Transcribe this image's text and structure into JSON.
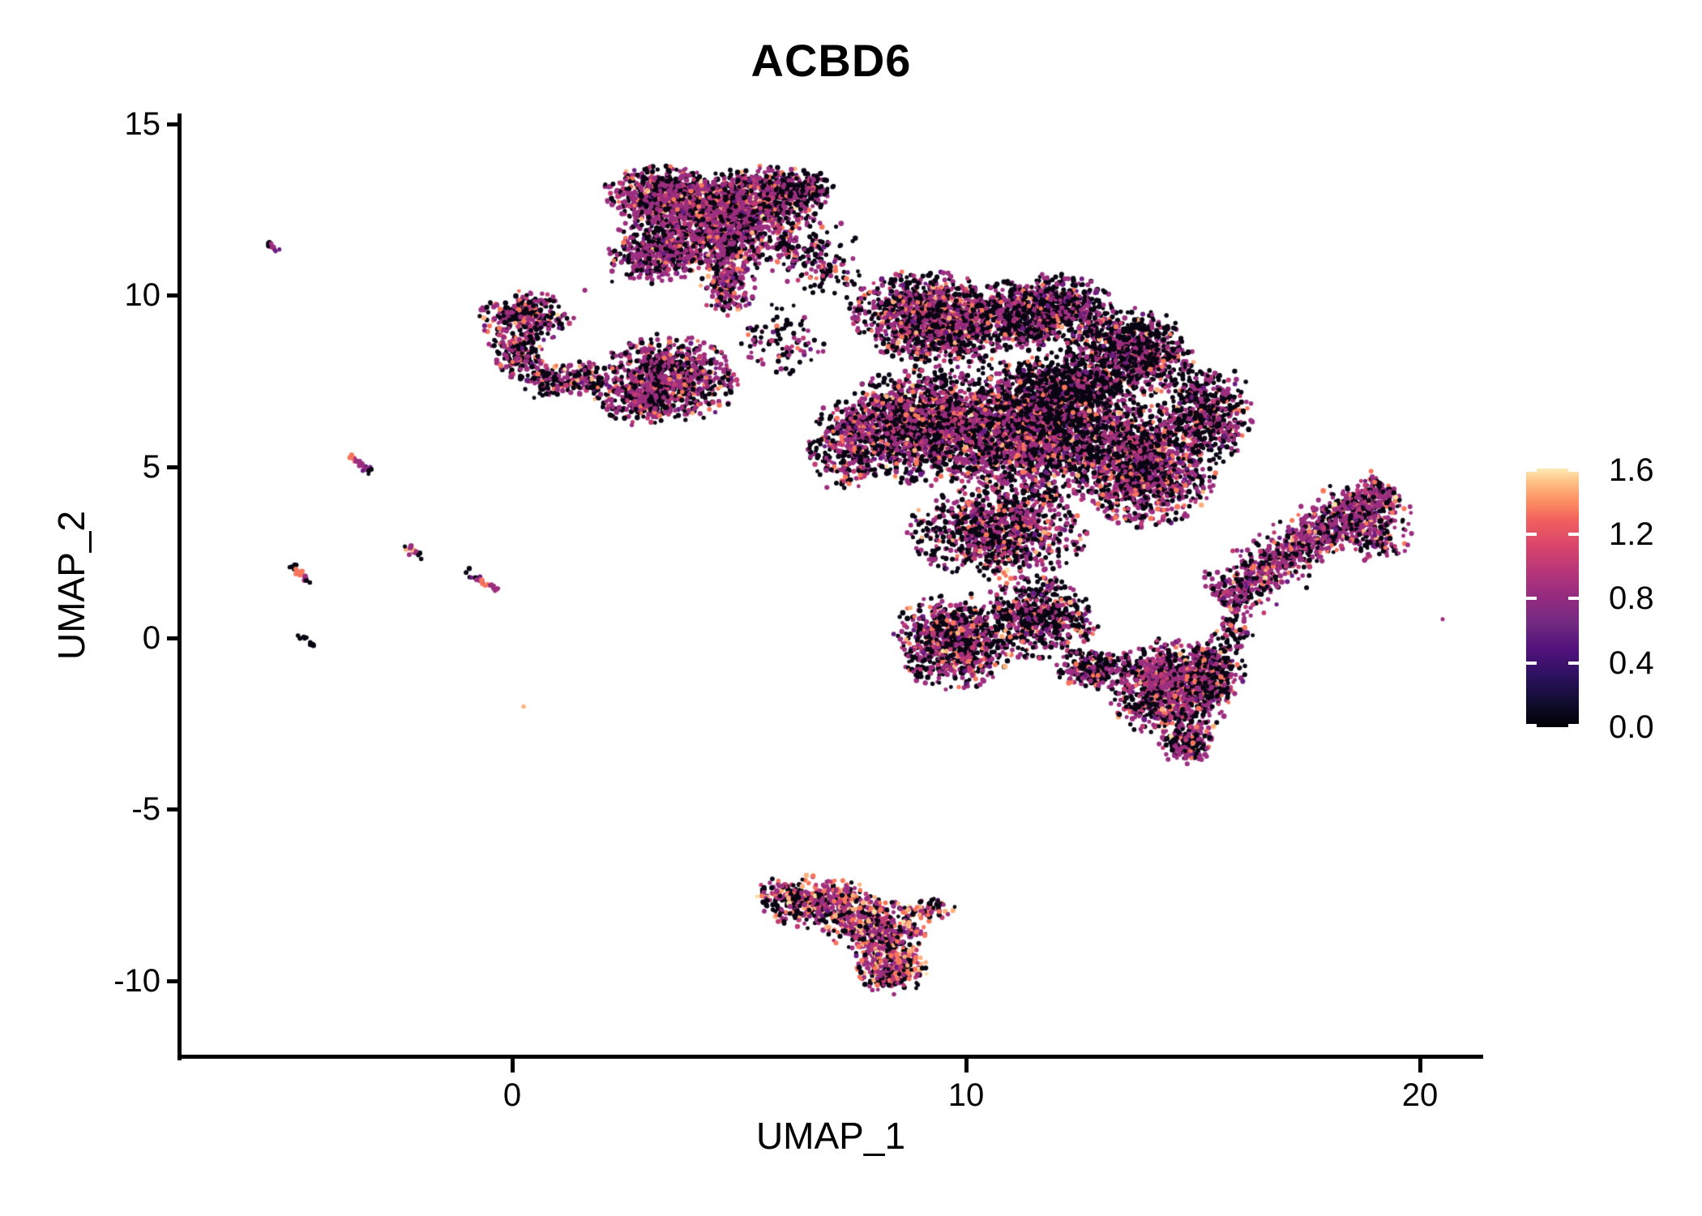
{
  "title": "ACBD6",
  "axes": {
    "x": {
      "label": "UMAP_1",
      "ticks": [
        {
          "value": 0,
          "label": "0"
        },
        {
          "value": 10,
          "label": "10"
        },
        {
          "value": 20,
          "label": "20"
        }
      ],
      "range": [
        -7.3,
        21.4
      ]
    },
    "y": {
      "label": "UMAP_2",
      "ticks": [
        {
          "value": 15,
          "label": "15"
        },
        {
          "value": 10,
          "label": "10"
        },
        {
          "value": 5,
          "label": "5"
        },
        {
          "value": 0,
          "label": "0"
        },
        {
          "value": -5,
          "label": "-5"
        },
        {
          "value": -10,
          "label": "-10"
        }
      ],
      "range": [
        -12.2,
        15.3
      ]
    }
  },
  "colorbar": {
    "max": 1.61,
    "ticks": [
      {
        "value": 1.6,
        "label": "1.6"
      },
      {
        "value": 1.2,
        "label": "1.2"
      },
      {
        "value": 0.8,
        "label": "0.8"
      },
      {
        "value": 0.4,
        "label": "0.4"
      },
      {
        "value": 0.0,
        "label": "0.0"
      }
    ],
    "tick_color": "#ffffff",
    "gradient": [
      "#000004 0%",
      "#120d31 10%",
      "#2d1160 20%",
      "#51127c 30%",
      "#722a81 40%",
      "#932b80 50%",
      "#b63679 60%",
      "#d8456c 70%",
      "#f1605d 80%",
      "#fb8560 86%",
      "#fe9f6d 90%",
      "#fec98d 96%",
      "#fdeab5 100%"
    ]
  },
  "chart_data": {
    "type": "scatter",
    "title": "ACBD6",
    "xlabel": "UMAP_1",
    "ylabel": "UMAP_2",
    "xlim": [
      -7.3,
      21.4
    ],
    "ylim": [
      -12.2,
      15.3
    ],
    "legend": "feature expression 0.0-1.6, magma colormap, legend right",
    "grid": false,
    "point_radius": 2.9,
    "seed": 42,
    "palette": {
      "black": "#0a0512",
      "violet": "#6a1c81",
      "purple": "#9c2e7f",
      "magenta": "#c13a74",
      "salmon": "#f8765c",
      "peach": "#feb27e",
      "cream": "#fde2a3",
      "paleyellow": "#fcfdbf"
    },
    "mixes": {
      "std": {
        "black": 0.46,
        "purple": 0.32,
        "violet": 0.04,
        "magenta": 0.07,
        "salmon": 0.085,
        "peach": 0.02,
        "cream": 0.005
      },
      "pr": {
        "black": 0.35,
        "purple": 0.43,
        "violet": 0.04,
        "magenta": 0.08,
        "salmon": 0.08,
        "peach": 0.015,
        "cream": 0.005
      },
      "dark": {
        "black": 0.58,
        "purple": 0.27,
        "violet": 0.04,
        "magenta": 0.04,
        "salmon": 0.06,
        "peach": 0.01
      },
      "dark2": {
        "black": 0.72,
        "purple": 0.18,
        "violet": 0.03,
        "magenta": 0.03,
        "salmon": 0.035,
        "peach": 0.005
      },
      "hot": {
        "black": 0.3,
        "purple": 0.3,
        "violet": 0.02,
        "magenta": 0.1,
        "salmon": 0.19,
        "peach": 0.07,
        "cream": 0.02
      }
    },
    "clusters": [
      {
        "name": "top-cluster-a",
        "type": "blob",
        "x": 3.5,
        "y": 12.85,
        "rx": 1.35,
        "ry": 0.8,
        "rot": -12,
        "n": 850,
        "mix": "pr"
      },
      {
        "name": "top-cluster-b",
        "type": "blob",
        "x": 5.3,
        "y": 12.7,
        "rx": 1.5,
        "ry": 0.95,
        "rot": 8,
        "n": 850,
        "mix": "pr"
      },
      {
        "name": "top-cluster-mid",
        "type": "blob",
        "x": 4.3,
        "y": 11.7,
        "rx": 1.8,
        "ry": 0.95,
        "rot": -5,
        "n": 750,
        "mix": "pr"
      },
      {
        "name": "top-cluster-left",
        "type": "blob",
        "x": 3.1,
        "y": 11.1,
        "rx": 0.95,
        "ry": 0.7,
        "rot": 0,
        "n": 300,
        "mix": "pr"
      },
      {
        "name": "top-cluster-tail",
        "type": "blob",
        "x": 4.75,
        "y": 10.3,
        "rx": 0.55,
        "ry": 0.85,
        "rot": 0,
        "n": 200,
        "mix": "pr"
      },
      {
        "name": "top-cluster-right-nub",
        "type": "blob",
        "x": 6.35,
        "y": 13.15,
        "rx": 0.8,
        "ry": 0.55,
        "rot": 0,
        "n": 180,
        "mix": "dark"
      },
      {
        "name": "top-right-trail",
        "type": "blob",
        "x": 6.5,
        "y": 11.3,
        "rx": 1.1,
        "ry": 0.9,
        "rot": 0,
        "n": 140,
        "mix": "dark"
      },
      {
        "name": "bridge-top-main",
        "type": "blob",
        "x": 7.0,
        "y": 10.5,
        "rx": 0.7,
        "ry": 0.6,
        "rot": 0,
        "n": 50,
        "mix": "dark"
      },
      {
        "name": "hook-cluster-top",
        "type": "blob",
        "x": 0.3,
        "y": 9.35,
        "rx": 0.95,
        "ry": 0.7,
        "rot": 0,
        "n": 300,
        "mix": "std"
      },
      {
        "name": "hook-cluster-mid",
        "type": "blob",
        "x": 0.1,
        "y": 8.35,
        "rx": 0.6,
        "ry": 0.6,
        "rot": 0,
        "n": 150,
        "mix": "std"
      },
      {
        "name": "hook-cluster-low",
        "type": "blob",
        "x": 0.75,
        "y": 7.55,
        "rx": 0.8,
        "ry": 0.5,
        "rot": 10,
        "n": 130,
        "mix": "std"
      },
      {
        "name": "hook-cluster-right",
        "type": "blob",
        "x": 1.55,
        "y": 7.6,
        "rx": 0.5,
        "ry": 0.45,
        "rot": 0,
        "n": 80,
        "mix": "std"
      },
      {
        "name": "bridge-hook-mid",
        "type": "blob",
        "x": 2.0,
        "y": 7.3,
        "rx": 0.5,
        "ry": 0.4,
        "rot": 0,
        "n": 40,
        "mix": "dark"
      },
      {
        "name": "mid-cluster-main",
        "type": "blob",
        "x": 3.5,
        "y": 7.6,
        "rx": 1.35,
        "ry": 1.15,
        "rot": -18,
        "n": 780,
        "mix": "pr"
      },
      {
        "name": "mid-cluster-low",
        "type": "blob",
        "x": 2.8,
        "y": 6.85,
        "rx": 0.75,
        "ry": 0.6,
        "rot": 0,
        "n": 220,
        "mix": "pr"
      },
      {
        "name": "bridge-mid-main",
        "type": "blob",
        "x": 5.9,
        "y": 8.7,
        "rx": 0.9,
        "ry": 1.0,
        "rot": 0,
        "n": 90,
        "mix": "dark"
      },
      {
        "name": "main-upper-left",
        "type": "blob",
        "x": 9.3,
        "y": 9.3,
        "rx": 1.7,
        "ry": 1.25,
        "rot": -15,
        "n": 1350,
        "mix": "std"
      },
      {
        "name": "main-upper-right",
        "type": "blob",
        "x": 11.6,
        "y": 9.5,
        "rx": 1.5,
        "ry": 1.0,
        "rot": 10,
        "n": 1000,
        "mix": "dark"
      },
      {
        "name": "main-right-top",
        "type": "blob",
        "x": 13.6,
        "y": 8.3,
        "rx": 1.3,
        "ry": 1.2,
        "rot": 0,
        "n": 900,
        "mix": "dark"
      },
      {
        "name": "main-center-left",
        "type": "blob",
        "x": 9.0,
        "y": 6.2,
        "rx": 1.6,
        "ry": 1.6,
        "rot": 0,
        "n": 1500,
        "mix": "std"
      },
      {
        "name": "main-center",
        "type": "blob",
        "x": 11.3,
        "y": 6.0,
        "rx": 1.9,
        "ry": 1.9,
        "rot": 0,
        "n": 2100,
        "mix": "std"
      },
      {
        "name": "main-center-dark-patch",
        "type": "blob",
        "x": 12.3,
        "y": 7.0,
        "rx": 1.4,
        "ry": 1.3,
        "rot": 0,
        "n": 800,
        "mix": "dark2"
      },
      {
        "name": "main-center-right",
        "type": "blob",
        "x": 13.9,
        "y": 5.1,
        "rx": 1.5,
        "ry": 1.7,
        "rot": 0,
        "n": 1400,
        "mix": "std"
      },
      {
        "name": "main-right-edge",
        "type": "blob",
        "x": 15.3,
        "y": 6.6,
        "rx": 0.95,
        "ry": 1.4,
        "rot": 0,
        "n": 500,
        "mix": "dark"
      },
      {
        "name": "main-left-protrusion",
        "type": "blob",
        "x": 7.35,
        "y": 5.6,
        "rx": 0.75,
        "ry": 1.25,
        "rot": 0,
        "n": 330,
        "mix": "std"
      },
      {
        "name": "main-neck",
        "type": "blob",
        "x": 10.7,
        "y": 3.1,
        "rx": 1.8,
        "ry": 1.3,
        "rot": 0,
        "n": 950,
        "mix": "std"
      },
      {
        "name": "main-lower-left",
        "type": "blob",
        "x": 9.7,
        "y": -0.1,
        "rx": 1.2,
        "ry": 1.3,
        "rot": 0,
        "n": 850,
        "mix": "std"
      },
      {
        "name": "main-lower-mid",
        "type": "blob",
        "x": 11.6,
        "y": 0.6,
        "rx": 1.2,
        "ry": 1.1,
        "rot": 0,
        "n": 600,
        "mix": "dark"
      },
      {
        "name": "main-lower-bridge",
        "type": "blob",
        "x": 12.8,
        "y": -0.9,
        "rx": 0.8,
        "ry": 0.55,
        "rot": 0,
        "n": 260,
        "mix": "dark"
      },
      {
        "name": "main-bottom-lobe",
        "type": "blob",
        "x": 14.5,
        "y": -1.5,
        "rx": 1.25,
        "ry": 1.35,
        "rot": 10,
        "n": 1050,
        "mix": "pr"
      },
      {
        "name": "main-bottom-tail",
        "type": "blob",
        "x": 14.85,
        "y": -3.1,
        "rx": 0.55,
        "ry": 0.55,
        "rot": 0,
        "n": 170,
        "mix": "pr"
      },
      {
        "name": "main-bottom-right-edge",
        "type": "blob",
        "x": 15.55,
        "y": -0.9,
        "rx": 0.6,
        "ry": 1.1,
        "rot": 0,
        "n": 220,
        "mix": "dark"
      },
      {
        "name": "gap-strays",
        "type": "blob",
        "x": 15.9,
        "y": 0.3,
        "rx": 0.5,
        "ry": 0.6,
        "rot": 0,
        "n": 50,
        "mix": "dark"
      },
      {
        "name": "right-wing",
        "type": "streak",
        "x1": 15.6,
        "y1": 1.1,
        "x2": 19.3,
        "y2": 4.4,
        "w": 0.62,
        "n": 1050,
        "mix": "pr"
      },
      {
        "name": "right-wing-head",
        "type": "blob",
        "x": 18.9,
        "y": 3.2,
        "rx": 0.8,
        "ry": 1.0,
        "rot": 25,
        "n": 220,
        "mix": "pr"
      },
      {
        "name": "bottom-cluster-left",
        "type": "blob",
        "x": 6.7,
        "y": -7.7,
        "rx": 1.25,
        "ry": 0.75,
        "rot": -8,
        "n": 480,
        "mix": "hot"
      },
      {
        "name": "bottom-cluster-mid",
        "type": "blob",
        "x": 8.0,
        "y": -8.4,
        "rx": 1.05,
        "ry": 0.85,
        "rot": -25,
        "n": 430,
        "mix": "hot"
      },
      {
        "name": "bottom-cluster-tip",
        "type": "blob",
        "x": 8.35,
        "y": -9.6,
        "rx": 0.75,
        "ry": 0.75,
        "rot": 0,
        "n": 330,
        "mix": "hot"
      },
      {
        "name": "bottom-cluster-right-nub",
        "type": "blob",
        "x": 9.2,
        "y": -7.9,
        "rx": 0.5,
        "ry": 0.35,
        "rot": 0,
        "n": 70,
        "mix": "hot"
      },
      {
        "name": "streak-far-left-top",
        "type": "streak",
        "x1": -5.4,
        "y1": 11.55,
        "x2": -5.12,
        "y2": 11.28,
        "w": 0.07,
        "n": 12,
        "colors_along": [
          "black",
          "purple",
          "purple",
          "violet",
          "black"
        ]
      },
      {
        "name": "streak-left-5",
        "type": "streak",
        "x1": -3.62,
        "y1": 5.35,
        "x2": -3.1,
        "y2": 4.82,
        "w": 0.08,
        "n": 26,
        "colors_along": [
          "salmon",
          "salmon",
          "purple",
          "purple",
          "violet",
          "black"
        ]
      },
      {
        "name": "streak-left-2a",
        "type": "streak",
        "x1": -2.42,
        "y1": 2.78,
        "x2": -2.02,
        "y2": 2.38,
        "w": 0.08,
        "n": 20,
        "colors_along": [
          "black",
          "purple",
          "peach",
          "purple",
          "black"
        ]
      },
      {
        "name": "streak-left-2b",
        "type": "streak",
        "x1": -4.92,
        "y1": 2.12,
        "x2": -4.45,
        "y2": 1.62,
        "w": 0.09,
        "n": 24,
        "colors_along": [
          "black",
          "salmon",
          "salmon",
          "salmon",
          "purple",
          "black"
        ]
      },
      {
        "name": "streak-left-1",
        "type": "streak",
        "x1": -0.98,
        "y1": 1.92,
        "x2": -0.35,
        "y2": 1.38,
        "w": 0.09,
        "n": 26,
        "colors_along": [
          "black",
          "violet",
          "purple",
          "salmon",
          "purple",
          "purple"
        ]
      },
      {
        "name": "streak-left-0-black",
        "type": "streak",
        "x1": -4.66,
        "y1": 0.08,
        "x2": -4.38,
        "y2": -0.22,
        "w": 0.07,
        "n": 11,
        "colors_along": [
          "black",
          "black",
          "black"
        ]
      },
      {
        "name": "lone-points",
        "type": "points",
        "pts": [
          [
            0.25,
            -2.0,
            "peach"
          ],
          [
            20.5,
            0.55,
            "purple"
          ],
          [
            5.35,
            9.0,
            "black"
          ],
          [
            6.2,
            9.7,
            "black"
          ],
          [
            2.2,
            10.4,
            "black"
          ],
          [
            1.6,
            10.15,
            "purple"
          ]
        ]
      }
    ]
  }
}
